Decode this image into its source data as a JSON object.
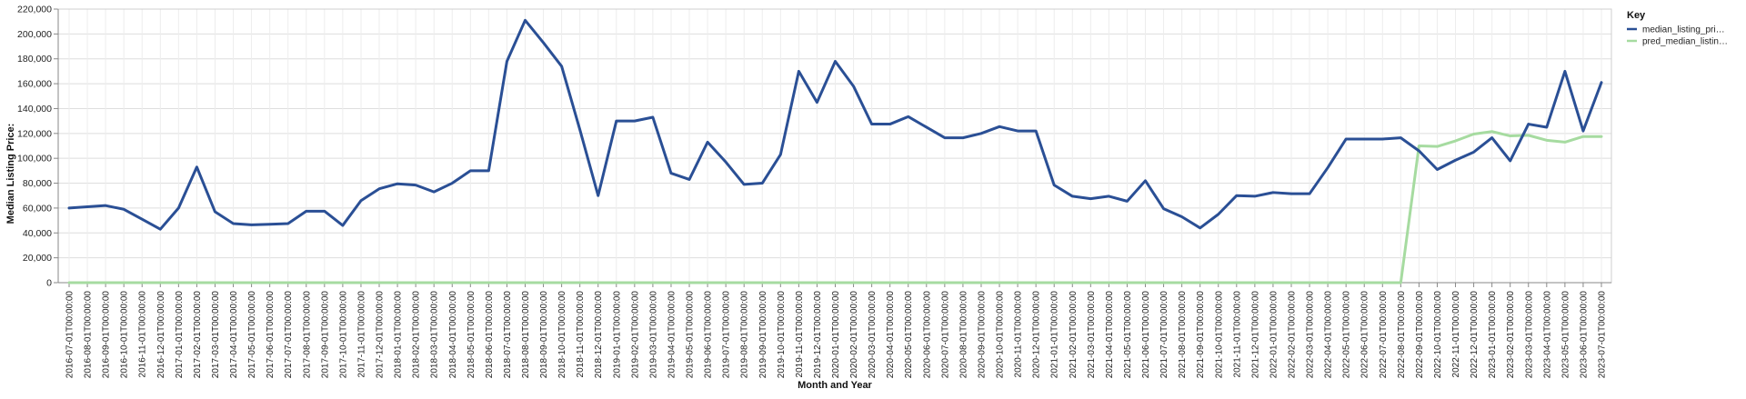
{
  "chart_data": {
    "type": "line",
    "xlabel": "Month and Year",
    "ylabel": "Median Listing Price:",
    "ylim": [
      0,
      220000
    ],
    "y_ticks": [
      "0",
      "20,000",
      "40,000",
      "60,000",
      "80,000",
      "100,000",
      "120,000",
      "140,000",
      "160,000",
      "180,000",
      "200,000",
      "220,000"
    ],
    "y_tick_values": [
      0,
      20000,
      40000,
      60000,
      80000,
      100000,
      120000,
      140000,
      160000,
      180000,
      200000,
      220000
    ],
    "grid": true,
    "legend": {
      "title": "Key",
      "placement": "right",
      "entries": [
        {
          "label": "median_listing_pri…",
          "color": "#2a4f95"
        },
        {
          "label": "pred_median_listin…",
          "color": "#a6dba0"
        }
      ]
    },
    "categories": [
      "2016-07-01T00:00:00",
      "2016-08-01T00:00:00",
      "2016-09-01T00:00:00",
      "2016-10-01T00:00:00",
      "2016-11-01T00:00:00",
      "2016-12-01T00:00:00",
      "2017-01-01T00:00:00",
      "2017-02-01T00:00:00",
      "2017-03-01T00:00:00",
      "2017-04-01T00:00:00",
      "2017-05-01T00:00:00",
      "2017-06-01T00:00:00",
      "2017-07-01T00:00:00",
      "2017-08-01T00:00:00",
      "2017-09-01T00:00:00",
      "2017-10-01T00:00:00",
      "2017-11-01T00:00:00",
      "2017-12-01T00:00:00",
      "2018-01-01T00:00:00",
      "2018-02-01T00:00:00",
      "2018-03-01T00:00:00",
      "2018-04-01T00:00:00",
      "2018-05-01T00:00:00",
      "2018-06-01T00:00:00",
      "2018-07-01T00:00:00",
      "2018-08-01T00:00:00",
      "2018-09-01T00:00:00",
      "2018-10-01T00:00:00",
      "2018-11-01T00:00:00",
      "2018-12-01T00:00:00",
      "2019-01-01T00:00:00",
      "2019-02-01T00:00:00",
      "2019-03-01T00:00:00",
      "2019-04-01T00:00:00",
      "2019-05-01T00:00:00",
      "2019-06-01T00:00:00",
      "2019-07-01T00:00:00",
      "2019-08-01T00:00:00",
      "2019-09-01T00:00:00",
      "2019-10-01T00:00:00",
      "2019-11-01T00:00:00",
      "2019-12-01T00:00:00",
      "2020-01-01T00:00:00",
      "2020-02-01T00:00:00",
      "2020-03-01T00:00:00",
      "2020-04-01T00:00:00",
      "2020-05-01T00:00:00",
      "2020-06-01T00:00:00",
      "2020-07-01T00:00:00",
      "2020-08-01T00:00:00",
      "2020-09-01T00:00:00",
      "2020-10-01T00:00:00",
      "2020-11-01T00:00:00",
      "2020-12-01T00:00:00",
      "2021-01-01T00:00:00",
      "2021-02-01T00:00:00",
      "2021-03-01T00:00:00",
      "2021-04-01T00:00:00",
      "2021-05-01T00:00:00",
      "2021-06-01T00:00:00",
      "2021-07-01T00:00:00",
      "2021-08-01T00:00:00",
      "2021-09-01T00:00:00",
      "2021-10-01T00:00:00",
      "2021-11-01T00:00:00",
      "2021-12-01T00:00:00",
      "2022-01-01T00:00:00",
      "2022-02-01T00:00:00",
      "2022-03-01T00:00:00",
      "2022-04-01T00:00:00",
      "2022-05-01T00:00:00",
      "2022-06-01T00:00:00",
      "2022-07-01T00:00:00",
      "2022-08-01T00:00:00",
      "2022-09-01T00:00:00",
      "2022-10-01T00:00:00",
      "2022-11-01T00:00:00",
      "2022-12-01T00:00:00",
      "2023-01-01T00:00:00",
      "2023-02-01T00:00:00",
      "2023-03-01T00:00:00",
      "2023-04-01T00:00:00",
      "2023-05-01T00:00:00",
      "2023-06-01T00:00:00",
      "2023-07-01T00:00:00"
    ],
    "series": [
      {
        "name": "median_listing_pri…",
        "color": "#2a4f95",
        "values": [
          60000,
          61000,
          62000,
          59000,
          51000,
          43000,
          60000,
          93000,
          57000,
          47500,
          46500,
          47000,
          47500,
          57500,
          57500,
          46000,
          66000,
          75500,
          79500,
          78500,
          73000,
          80000,
          90000,
          90000,
          178000,
          211000,
          193000,
          174000,
          123000,
          70000,
          130000,
          130000,
          133000,
          88000,
          83000,
          113000,
          97000,
          79000,
          80000,
          103000,
          170000,
          145000,
          178000,
          158000,
          127500,
          127500,
          133500,
          125000,
          116500,
          116500,
          120000,
          125500,
          122000,
          122000,
          78500,
          69500,
          67500,
          69500,
          65500,
          82000,
          59500,
          53000,
          44000,
          55000,
          70000,
          69500,
          72500,
          71500,
          71500,
          92500,
          115500,
          115500,
          115500,
          116500,
          106000,
          91000,
          98500,
          105000,
          116500,
          98000,
          127500,
          125000,
          170000,
          122000,
          161000
        ]
      },
      {
        "name": "pred_median_listin…",
        "color": "#a6dba0",
        "values": [
          0,
          0,
          0,
          0,
          0,
          0,
          0,
          0,
          0,
          0,
          0,
          0,
          0,
          0,
          0,
          0,
          0,
          0,
          0,
          0,
          0,
          0,
          0,
          0,
          0,
          0,
          0,
          0,
          0,
          0,
          0,
          0,
          0,
          0,
          0,
          0,
          0,
          0,
          0,
          0,
          0,
          0,
          0,
          0,
          0,
          0,
          0,
          0,
          0,
          0,
          0,
          0,
          0,
          0,
          0,
          0,
          0,
          0,
          0,
          0,
          0,
          0,
          0,
          0,
          0,
          0,
          0,
          0,
          0,
          0,
          0,
          0,
          0,
          0,
          110000,
          109500,
          114000,
          119500,
          121500,
          118000,
          118500,
          114500,
          113000,
          117500,
          117500
        ]
      }
    ]
  }
}
